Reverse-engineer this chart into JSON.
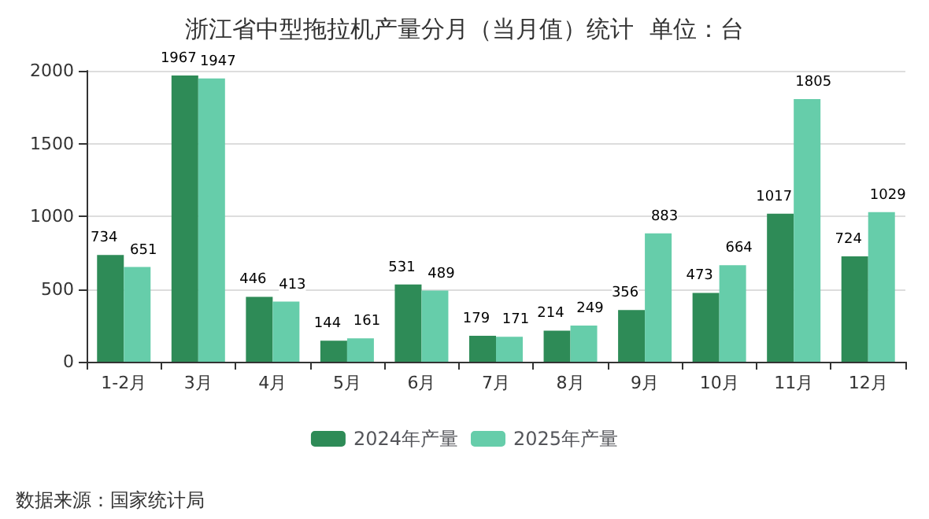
{
  "chart_data": {
    "type": "bar",
    "title": "浙江省中型拖拉机产量分月（当月值）统计  单位：台",
    "categories": [
      "1-2月",
      "3月",
      "4月",
      "5月",
      "6月",
      "7月",
      "8月",
      "9月",
      "10月",
      "11月",
      "12月"
    ],
    "series": [
      {
        "name": "2024年产量",
        "color": "#2e8b57",
        "values": [
          734,
          1967,
          446,
          144,
          531,
          179,
          214,
          356,
          473,
          1017,
          724
        ]
      },
      {
        "name": "2025年产量",
        "color": "#66cdaa",
        "values": [
          651,
          1947,
          413,
          161,
          489,
          171,
          249,
          883,
          664,
          1805,
          1029
        ]
      }
    ],
    "ylim": [
      0,
      2000
    ],
    "yticks": [
      0,
      500,
      1000,
      1500,
      2000
    ],
    "grid": "y",
    "legend": "bottom",
    "data_labels": true,
    "annotations": [
      "数据来源：国家统计局"
    ]
  }
}
